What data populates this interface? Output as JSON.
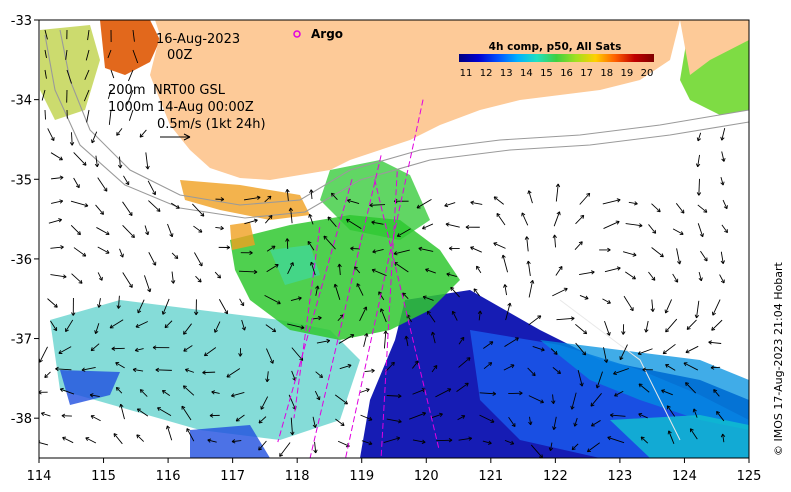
{
  "map": {
    "x_ticks": [
      "114",
      "115",
      "116",
      "117",
      "118",
      "119",
      "120",
      "121",
      "122",
      "123",
      "124",
      "125"
    ],
    "y_ticks": [
      "-33",
      "-34",
      "-35",
      "-36",
      "-37",
      "-38"
    ],
    "x_range": [
      114,
      125
    ],
    "y_range": [
      -38.5,
      -33
    ]
  },
  "annotations": {
    "date": "16-Aug-2023",
    "time": "00Z",
    "contour_200": "200m",
    "contour_1000": "1000m",
    "model_label": "NRT00 GSL",
    "model_time": "14-Aug 00:00Z",
    "vector_scale": "0.5m/s (1kt 24h)"
  },
  "legend": {
    "argo_label": "Argo",
    "argo_color": "#e000e0"
  },
  "colorbar": {
    "title": "4h comp, p50, All Sats",
    "ticks": [
      "11",
      "12",
      "13",
      "14",
      "15",
      "16",
      "17",
      "18",
      "19",
      "20"
    ],
    "colors": [
      "#00007f",
      "#0000d0",
      "#0050ff",
      "#00b0ff",
      "#20e0c0",
      "#40d040",
      "#a0e020",
      "#ffd000",
      "#ff6000",
      "#c00000",
      "#7f0000"
    ]
  },
  "credit": "© IMOS 17-Aug-2023 21:04 Hobart",
  "style": {
    "land_color": "#fdca98",
    "frame_color": "#000000"
  }
}
